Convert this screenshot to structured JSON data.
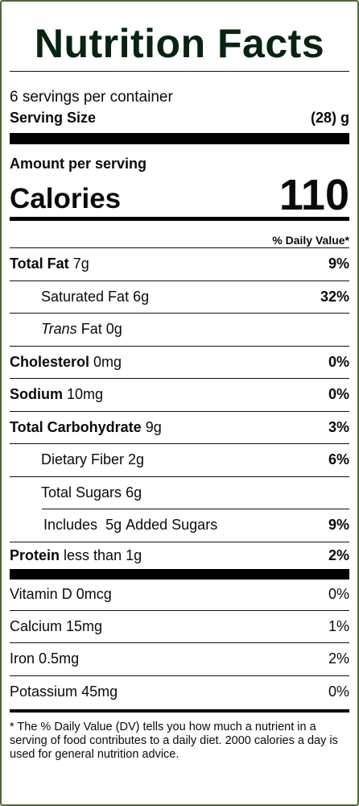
{
  "label": {
    "title": "Nutrition Facts",
    "servings_per_container": "6 servings per container",
    "serving_size_label": "Serving Size",
    "serving_size_value": "(28) g",
    "amount_per_serving": "Amount per serving",
    "calories_label": "Calories",
    "calories_value": "110",
    "daily_value_header": "% Daily Value*",
    "nutrients": [
      {
        "name": "Total Fat",
        "amount": "7g",
        "dv": "9%"
      },
      {
        "name": "Saturated Fat",
        "amount": "6g",
        "dv": "32%"
      },
      {
        "name_italic": "Trans",
        "name": "Fat",
        "amount": "0g",
        "dv": ""
      },
      {
        "name": "Cholesterol",
        "amount": "0mg",
        "dv": "0%"
      },
      {
        "name": "Sodium",
        "amount": "10mg",
        "dv": "0%"
      },
      {
        "name": "Total Carbohydrate",
        "amount": "9g",
        "dv": "3%"
      },
      {
        "name": "Dietary Fiber",
        "amount": "2g",
        "dv": "6%"
      },
      {
        "name": "Total Sugars",
        "amount": "6g",
        "dv": ""
      },
      {
        "name": "Includes",
        "amount": "5g",
        "suffix": "Added Sugars",
        "dv": "9%"
      },
      {
        "name": "Protein",
        "amount": "less than 1g",
        "dv": "2%"
      }
    ],
    "vitamins": [
      {
        "name": "Vitamin D",
        "amount": "0mcg",
        "dv": "0%"
      },
      {
        "name": "Calcium",
        "amount": "15mg",
        "dv": "1%"
      },
      {
        "name": "Iron",
        "amount": "0.5mg",
        "dv": "2%"
      },
      {
        "name": "Potassium",
        "amount": "45mg",
        "dv": "0%"
      }
    ],
    "footnote": "* The % Daily Value (DV) tells you how much a nutrient in a serving of food contributes to a daily diet. 2000 calories a day is used for general nutrition advice.",
    "colors": {
      "border": "#4e6b2f",
      "title": "#07240f"
    }
  }
}
